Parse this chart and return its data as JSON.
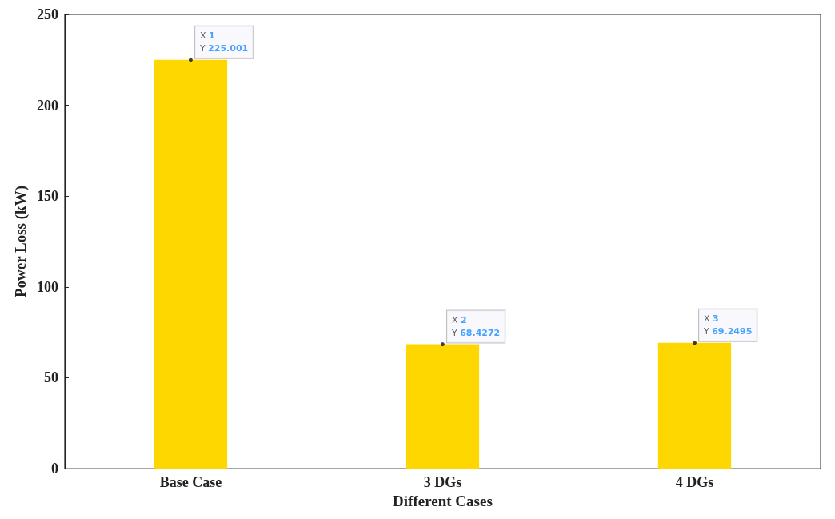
{
  "chart_data": {
    "type": "bar",
    "xlabel": "Different Cases",
    "ylabel": "Power Loss (kW)",
    "categories": [
      "Base Case",
      "3 DGs",
      "4 DGs"
    ],
    "values": [
      225.001,
      68.4272,
      69.2495
    ],
    "color": "#ffd700",
    "ylim": [
      0,
      250
    ],
    "yticks": [
      0,
      50,
      100,
      150,
      200,
      250
    ],
    "grid": false,
    "annotations": [
      {
        "text": "X 1\nY 225.001",
        "x": "Base Case",
        "y": 225.001
      },
      {
        "text": "X 2\nY 68.4272",
        "x": "3 DGs",
        "y": 68.4272
      },
      {
        "text": "X 3\nY 69.2495",
        "x": "4 DGs",
        "y": 69.2495
      }
    ]
  }
}
